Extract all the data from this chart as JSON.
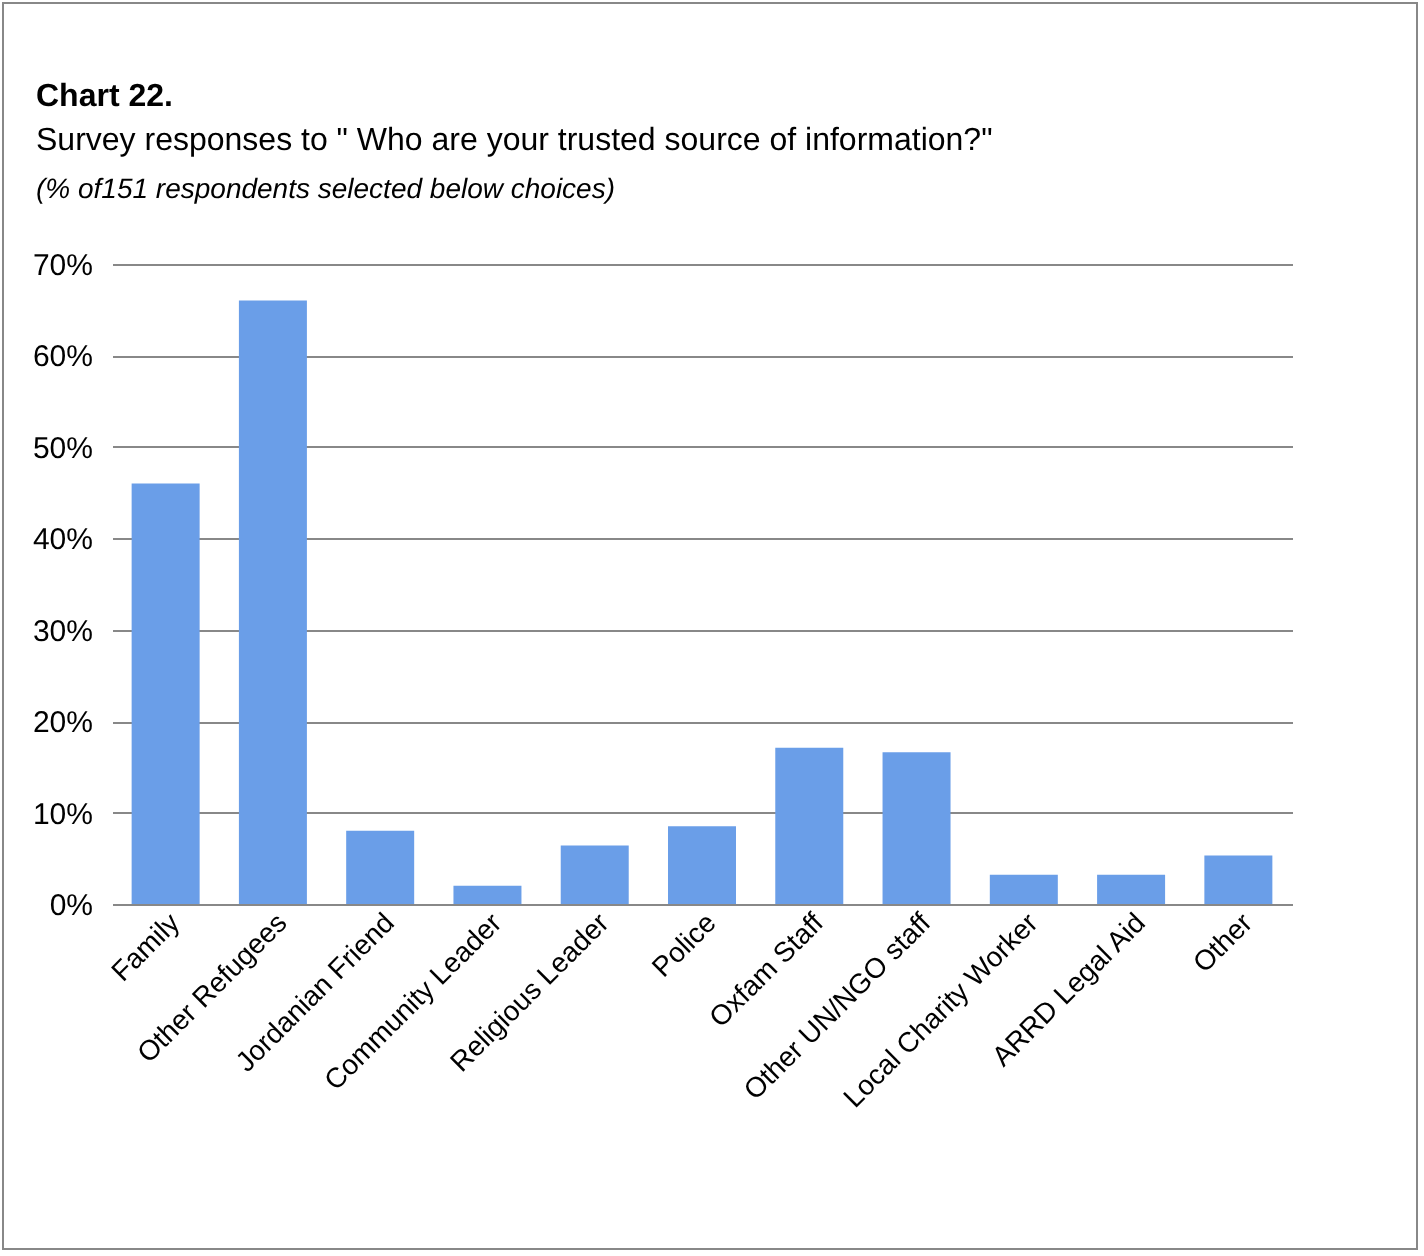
{
  "chart_data": {
    "type": "bar",
    "title": "Chart 22.",
    "subtitle": "Survey responses to \" Who are your trusted source of information?\"",
    "annotations": [
      "(% of151 respondents selected below choices)"
    ],
    "categories": [
      "Family",
      "Other Refugees",
      "Jordanian Friend",
      "Community Leader",
      "Religious Leader",
      "Police",
      "Oxfam Staff",
      "Other UN/NGO staff",
      "Local Charity Worker",
      "ARRD Legal Aid",
      "Other"
    ],
    "values": [
      46,
      66,
      8,
      2,
      6.4,
      8.5,
      17.1,
      16.6,
      3.2,
      3.2,
      5.3
    ],
    "color": "#6a9ee8",
    "ylim": [
      0,
      70
    ],
    "yticks": [
      {
        "value": 0,
        "label": "0%"
      },
      {
        "value": 10,
        "label": "10%"
      },
      {
        "value": 20,
        "label": "20%"
      },
      {
        "value": 30,
        "label": "30%"
      },
      {
        "value": 40,
        "label": "40%"
      },
      {
        "value": 50,
        "label": "50%"
      },
      {
        "value": 60,
        "label": "60%"
      },
      {
        "value": 70,
        "label": "70%"
      }
    ],
    "grid": "y"
  }
}
